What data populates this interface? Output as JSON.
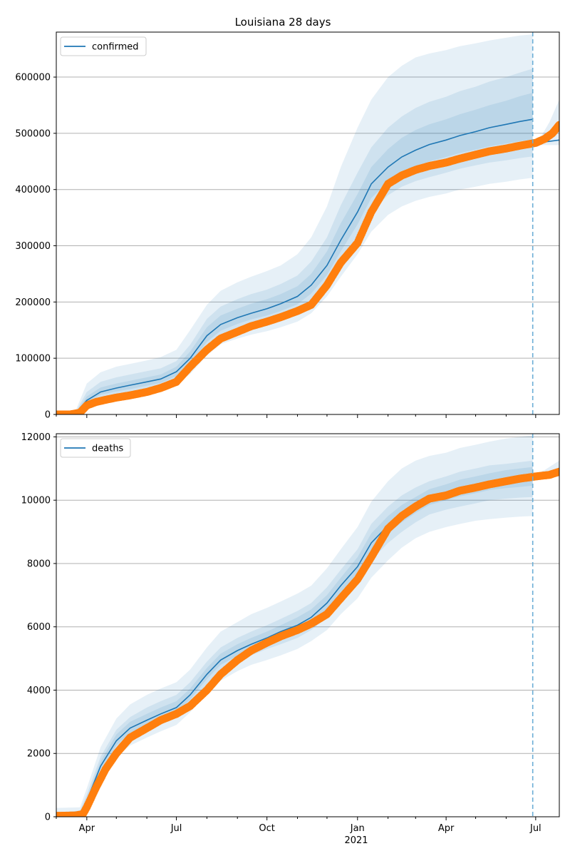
{
  "title": "Louisiana 28 days",
  "x_year_label": "2021",
  "colors": {
    "model": "#1f77b4",
    "observed": "#ff7f0e",
    "band": "#1f77b4",
    "grid": "#b0b0b0",
    "vline": "#6baed6"
  },
  "chart_data": [
    {
      "type": "line",
      "legend": [
        "confirmed"
      ],
      "legend_placement": "top-left",
      "grid": "horizontal",
      "xlim": [
        "2020-03-01",
        "2021-07-25"
      ],
      "ylim": [
        0,
        680000
      ],
      "yticks": [
        0,
        100000,
        200000,
        300000,
        400000,
        500000,
        600000
      ],
      "forecast_cutoff": "2021-06-28",
      "model_median": {
        "name": "confirmed",
        "x": [
          "2020-03-01",
          "2020-03-20",
          "2020-04-01",
          "2020-04-15",
          "2020-05-01",
          "2020-05-15",
          "2020-06-01",
          "2020-06-15",
          "2020-07-01",
          "2020-07-15",
          "2020-08-01",
          "2020-08-15",
          "2020-09-01",
          "2020-09-15",
          "2020-10-01",
          "2020-10-15",
          "2020-11-01",
          "2020-11-15",
          "2020-12-01",
          "2020-12-15",
          "2021-01-01",
          "2021-01-15",
          "2021-02-01",
          "2021-02-15",
          "2021-03-01",
          "2021-03-15",
          "2021-04-01",
          "2021-04-15",
          "2021-05-01",
          "2021-05-15",
          "2021-06-01",
          "2021-06-15",
          "2021-06-28"
        ],
        "y": [
          0,
          1000,
          25000,
          40000,
          47000,
          52000,
          58000,
          63000,
          76000,
          100000,
          140000,
          160000,
          172000,
          180000,
          188000,
          197000,
          210000,
          230000,
          265000,
          310000,
          360000,
          410000,
          440000,
          458000,
          470000,
          480000,
          488000,
          496000,
          503000,
          510000,
          516000,
          521000,
          525000
        ]
      },
      "bands": [
        {
          "level": "outer",
          "lower": [
            0,
            0,
            15000,
            25000,
            30000,
            33000,
            38000,
            43000,
            52000,
            72000,
            105000,
            125000,
            135000,
            142000,
            148000,
            155000,
            165000,
            180000,
            210000,
            245000,
            285000,
            325000,
            355000,
            370000,
            380000,
            387000,
            393000,
            400000,
            405000,
            410000,
            414000,
            418000,
            421000
          ],
          "upper": [
            0,
            4000,
            55000,
            75000,
            85000,
            90000,
            96000,
            102000,
            115000,
            150000,
            195000,
            220000,
            235000,
            245000,
            255000,
            265000,
            285000,
            315000,
            370000,
            440000,
            510000,
            560000,
            600000,
            620000,
            635000,
            642000,
            648000,
            655000,
            660000,
            665000,
            670000,
            674000,
            676000
          ]
        },
        {
          "level": "middle",
          "lower": [
            0,
            0,
            20000,
            30000,
            36000,
            40000,
            45000,
            50000,
            60000,
            82000,
            118000,
            138000,
            150000,
            157000,
            164000,
            172000,
            183000,
            200000,
            230000,
            270000,
            315000,
            360000,
            390000,
            405000,
            415000,
            422000,
            430000,
            437000,
            443000,
            448000,
            452000,
            456000,
            459000
          ],
          "upper": [
            0,
            2500,
            40000,
            58000,
            66000,
            71000,
            77000,
            82000,
            95000,
            124000,
            170000,
            192000,
            205000,
            214000,
            222000,
            232000,
            247000,
            272000,
            315000,
            372000,
            430000,
            475000,
            510000,
            530000,
            545000,
            556000,
            565000,
            575000,
            583000,
            592000,
            600000,
            608000,
            615000
          ]
        },
        {
          "level": "inner",
          "lower": [
            0,
            0,
            22000,
            35000,
            41000,
            45000,
            51000,
            56000,
            68000,
            91000,
            129000,
            149000,
            161000,
            169000,
            176000,
            184000,
            196000,
            215000,
            248000,
            290000,
            338000,
            385000,
            413000,
            430000,
            441000,
            450000,
            458000,
            465000,
            471000,
            477000,
            482000,
            486000,
            489000
          ],
          "upper": [
            0,
            1500,
            32000,
            48000,
            55000,
            60000,
            66000,
            71000,
            85000,
            112000,
            155000,
            176000,
            188000,
            197000,
            205000,
            214000,
            228000,
            250000,
            290000,
            340000,
            392000,
            440000,
            472000,
            492000,
            506000,
            516000,
            525000,
            534000,
            542000,
            550000,
            558000,
            566000,
            572000
          ]
        }
      ],
      "post_cutoff_median": {
        "x": [
          "2021-06-28",
          "2021-07-25"
        ],
        "y": [
          482000,
          488000
        ]
      },
      "post_cutoff_band": {
        "x": [
          "2021-06-28",
          "2021-07-05",
          "2021-07-15",
          "2021-07-25"
        ],
        "lower": [
          478000,
          479000,
          479000,
          479000
        ],
        "upper": [
          485000,
          490000,
          520000,
          560000
        ]
      },
      "observed": {
        "name": "observed",
        "x": [
          "2020-03-01",
          "2020-03-15",
          "2020-03-25",
          "2020-04-01",
          "2020-04-10",
          "2020-04-20",
          "2020-05-01",
          "2020-05-15",
          "2020-06-01",
          "2020-06-15",
          "2020-07-01",
          "2020-07-15",
          "2020-08-01",
          "2020-08-15",
          "2020-09-01",
          "2020-09-15",
          "2020-10-01",
          "2020-10-15",
          "2020-11-01",
          "2020-11-15",
          "2020-12-01",
          "2020-12-15",
          "2021-01-01",
          "2021-01-15",
          "2021-02-01",
          "2021-02-15",
          "2021-03-01",
          "2021-03-15",
          "2021-04-01",
          "2021-04-15",
          "2021-05-01",
          "2021-05-15",
          "2021-06-01",
          "2021-06-15",
          "2021-07-01",
          "2021-07-10",
          "2021-07-18",
          "2021-07-25"
        ],
        "y": [
          0,
          0,
          3000,
          16000,
          22000,
          26000,
          30000,
          34000,
          40000,
          47000,
          58000,
          85000,
          115000,
          135000,
          147000,
          157000,
          165000,
          173000,
          184000,
          195000,
          230000,
          270000,
          305000,
          360000,
          410000,
          425000,
          435000,
          442000,
          448000,
          455000,
          462000,
          468000,
          473000,
          478000,
          483000,
          490000,
          500000,
          515000
        ]
      }
    },
    {
      "type": "line",
      "legend": [
        "deaths"
      ],
      "legend_placement": "top-left",
      "grid": "horizontal",
      "xlim": [
        "2020-03-01",
        "2021-07-25"
      ],
      "ylim": [
        0,
        12100
      ],
      "yticks": [
        0,
        2000,
        4000,
        6000,
        8000,
        10000,
        12000
      ],
      "xticks": [
        "Apr",
        "Jul",
        "Oct",
        "Jan",
        "Apr",
        "Jul"
      ],
      "forecast_cutoff": "2021-06-28",
      "model_median": {
        "name": "deaths",
        "x": [
          "2020-03-01",
          "2020-03-25",
          "2020-04-01",
          "2020-04-15",
          "2020-05-01",
          "2020-05-15",
          "2020-06-01",
          "2020-06-15",
          "2020-07-01",
          "2020-07-15",
          "2020-08-01",
          "2020-08-15",
          "2020-09-01",
          "2020-09-15",
          "2020-10-01",
          "2020-10-15",
          "2020-11-01",
          "2020-11-15",
          "2020-12-01",
          "2020-12-15",
          "2021-01-01",
          "2021-01-15",
          "2021-02-01",
          "2021-02-15",
          "2021-03-01",
          "2021-03-15",
          "2021-04-01",
          "2021-04-15",
          "2021-05-01",
          "2021-05-15",
          "2021-06-01",
          "2021-06-15",
          "2021-06-28"
        ],
        "y": [
          40,
          100,
          500,
          1600,
          2400,
          2800,
          3050,
          3250,
          3450,
          3850,
          4500,
          4950,
          5250,
          5450,
          5650,
          5850,
          6050,
          6300,
          6750,
          7300,
          7900,
          8650,
          9200,
          9550,
          9850,
          10100,
          10250,
          10400,
          10500,
          10600,
          10650,
          10700,
          10750
        ]
      },
      "bands": [
        {
          "level": "outer",
          "lower": [
            0,
            0,
            300,
            1200,
            1900,
            2250,
            2500,
            2700,
            2900,
            3300,
            3900,
            4300,
            4600,
            4800,
            4950,
            5100,
            5300,
            5550,
            5900,
            6400,
            6900,
            7550,
            8100,
            8500,
            8800,
            9000,
            9150,
            9250,
            9350,
            9400,
            9450,
            9480,
            9500
          ],
          "upper": [
            280,
            300,
            900,
            2200,
            3100,
            3550,
            3850,
            4050,
            4250,
            4650,
            5350,
            5850,
            6150,
            6400,
            6600,
            6800,
            7050,
            7300,
            7850,
            8450,
            9150,
            9950,
            10600,
            11000,
            11250,
            11400,
            11500,
            11650,
            11750,
            11850,
            11950,
            12000,
            12050
          ]
        },
        {
          "level": "middle",
          "lower": [
            0,
            20,
            400,
            1400,
            2100,
            2500,
            2750,
            2950,
            3150,
            3550,
            4200,
            4600,
            4900,
            5100,
            5300,
            5450,
            5650,
            5900,
            6300,
            6850,
            7400,
            8100,
            8650,
            9000,
            9300,
            9550,
            9700,
            9800,
            9900,
            10000,
            10050,
            10080,
            10100
          ],
          "upper": [
            120,
            200,
            700,
            1900,
            2750,
            3150,
            3450,
            3650,
            3850,
            4250,
            4900,
            5350,
            5650,
            5850,
            6050,
            6250,
            6500,
            6750,
            7250,
            7800,
            8450,
            9250,
            9800,
            10150,
            10400,
            10600,
            10750,
            10900,
            11000,
            11100,
            11150,
            11200,
            11250
          ]
        },
        {
          "level": "inner",
          "lower": [
            10,
            50,
            450,
            1500,
            2250,
            2650,
            2900,
            3100,
            3300,
            3700,
            4350,
            4800,
            5080,
            5280,
            5480,
            5650,
            5850,
            6100,
            6550,
            7080,
            7650,
            8400,
            8950,
            9300,
            9600,
            9850,
            10000,
            10120,
            10220,
            10320,
            10380,
            10420,
            10460
          ],
          "upper": [
            70,
            150,
            600,
            1750,
            2600,
            3000,
            3250,
            3450,
            3650,
            4050,
            4700,
            5150,
            5450,
            5650,
            5850,
            6050,
            6300,
            6550,
            7000,
            7550,
            8200,
            8950,
            9500,
            9850,
            10100,
            10350,
            10500,
            10650,
            10750,
            10850,
            10950,
            11000,
            11050
          ]
        }
      ],
      "post_cutoff_median": {
        "x": [
          "2021-06-28",
          "2021-07-25"
        ],
        "y": [
          10750,
          10900
        ]
      },
      "post_cutoff_band": {
        "x": [
          "2021-06-28",
          "2021-07-10",
          "2021-07-25"
        ],
        "lower": [
          10700,
          10720,
          10750
        ],
        "upper": [
          10800,
          10950,
          11250
        ]
      },
      "observed": {
        "name": "observed",
        "x": [
          "2020-03-01",
          "2020-03-20",
          "2020-03-28",
          "2020-04-01",
          "2020-04-10",
          "2020-04-20",
          "2020-05-01",
          "2020-05-15",
          "2020-06-01",
          "2020-06-15",
          "2020-07-01",
          "2020-07-15",
          "2020-08-01",
          "2020-08-15",
          "2020-09-01",
          "2020-09-15",
          "2020-10-01",
          "2020-10-15",
          "2020-11-01",
          "2020-11-15",
          "2020-12-01",
          "2020-12-15",
          "2021-01-01",
          "2021-01-15",
          "2021-02-01",
          "2021-02-15",
          "2021-03-01",
          "2021-03-15",
          "2021-04-01",
          "2021-04-15",
          "2021-05-01",
          "2021-05-15",
          "2021-06-01",
          "2021-06-15",
          "2021-07-01",
          "2021-07-15",
          "2021-07-25"
        ],
        "y": [
          30,
          40,
          80,
          300,
          900,
          1500,
          2000,
          2500,
          2800,
          3050,
          3250,
          3500,
          4000,
          4500,
          4950,
          5250,
          5500,
          5700,
          5900,
          6100,
          6400,
          6900,
          7500,
          8200,
          9100,
          9500,
          9800,
          10050,
          10150,
          10300,
          10400,
          10500,
          10600,
          10680,
          10750,
          10800,
          10900
        ]
      }
    }
  ]
}
